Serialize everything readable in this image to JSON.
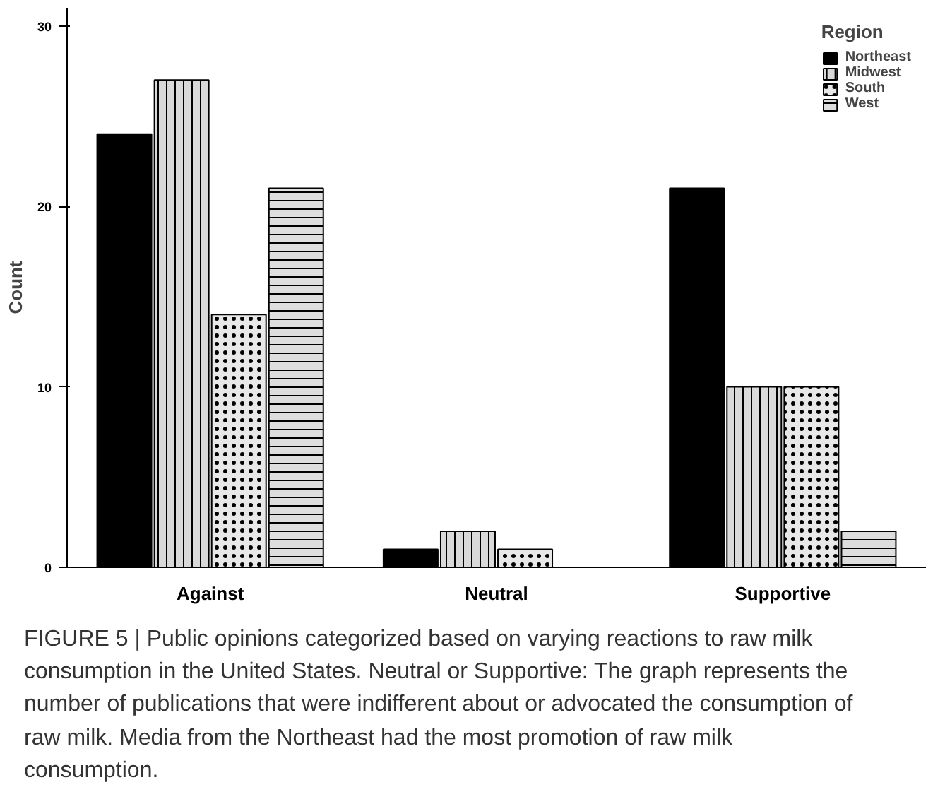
{
  "chart_data": {
    "type": "bar",
    "ylabel": "Count",
    "legend_title": "Region",
    "categories": [
      "Against",
      "Neutral",
      "Supportive"
    ],
    "series": [
      {
        "name": "Northeast",
        "color": "#000000",
        "values": [
          24,
          1,
          21
        ]
      },
      {
        "name": "Midwest",
        "color": "#d9d9d9",
        "values": [
          27,
          2,
          10
        ]
      },
      {
        "name": "South",
        "color": "#e8e8e8",
        "values": [
          14,
          1,
          10
        ]
      },
      {
        "name": "West",
        "color": "#dedede",
        "values": [
          21,
          null,
          2
        ]
      }
    ],
    "ylim": [
      0,
      31
    ],
    "yticks": [
      0,
      10,
      20,
      30
    ],
    "grid": false,
    "legend": "top right",
    "annotations": [
      "FIGURE 5 | Public opinions categorized based on varying reactions to raw milk consumption in the United States. Neutral or Supportive: The graph represents the number of publications that were indifferent about or advocated the consumption of raw milk. Media from the Northeast had the most promotion of raw milk consumption."
    ]
  }
}
